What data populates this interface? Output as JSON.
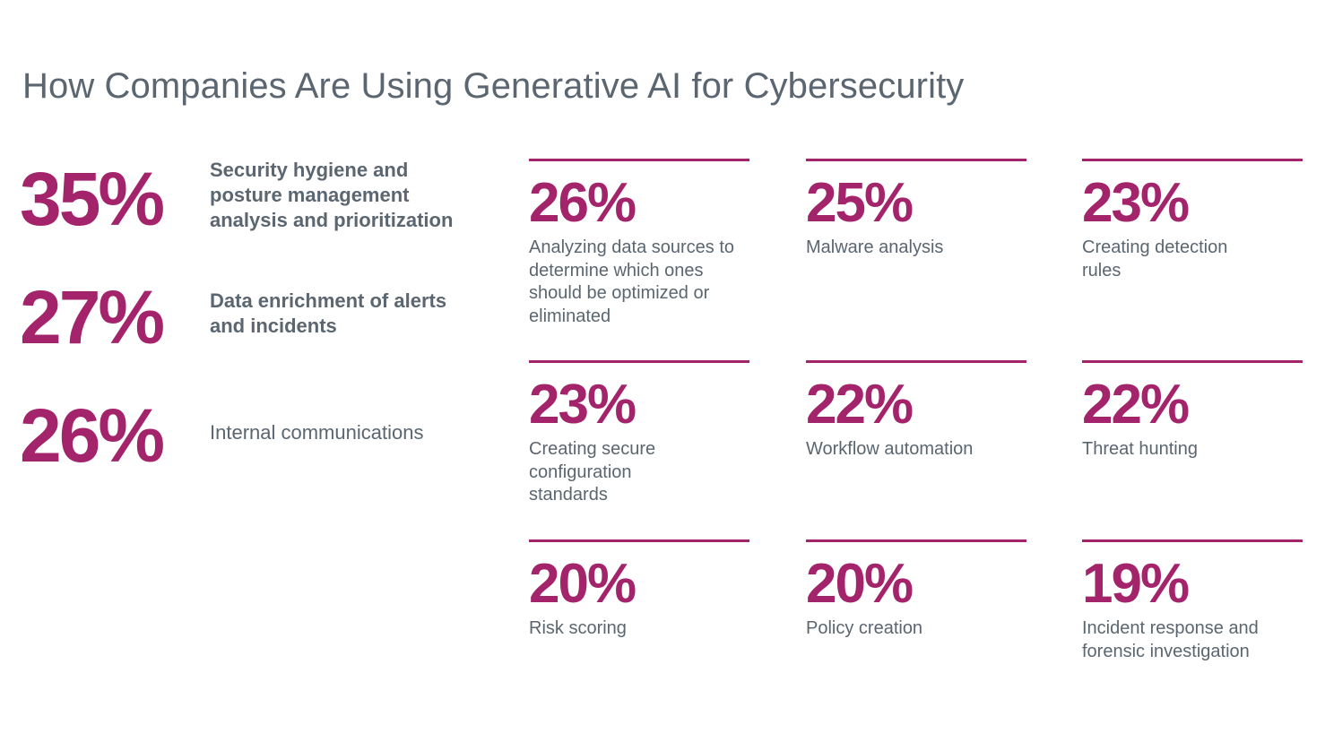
{
  "title": "How Companies Are Using Generative AI for Cybersecurity",
  "colors": {
    "accent": "#a3246b",
    "text": "#5b6670",
    "background": "#ffffff"
  },
  "chart_data": {
    "type": "table",
    "title": "How Companies Are Using Generative AI for Cybersecurity",
    "unit": "%",
    "top_uses": [
      {
        "value": 35,
        "display": "35%",
        "label": "Security hygiene and posture management analysis and prioritization"
      },
      {
        "value": 27,
        "display": "27%",
        "label": "Data enrichment of alerts and incidents"
      },
      {
        "value": 26,
        "display": "26%",
        "label": "Internal communications"
      }
    ],
    "other_uses": [
      {
        "value": 26,
        "display": "26%",
        "label": "Analyzing data sources to determine which ones should be optimized or eliminated"
      },
      {
        "value": 25,
        "display": "25%",
        "label": "Malware analysis"
      },
      {
        "value": 23,
        "display": "23%",
        "label": "Creating detection rules"
      },
      {
        "value": 23,
        "display": "23%",
        "label": "Creating secure configuration standards"
      },
      {
        "value": 22,
        "display": "22%",
        "label": "Workflow automation"
      },
      {
        "value": 22,
        "display": "22%",
        "label": "Threat hunting"
      },
      {
        "value": 20,
        "display": "20%",
        "label": "Risk scoring"
      },
      {
        "value": 20,
        "display": "20%",
        "label": "Policy creation"
      },
      {
        "value": 19,
        "display": "19%",
        "label": "Incident response and forensic investigation"
      }
    ]
  }
}
